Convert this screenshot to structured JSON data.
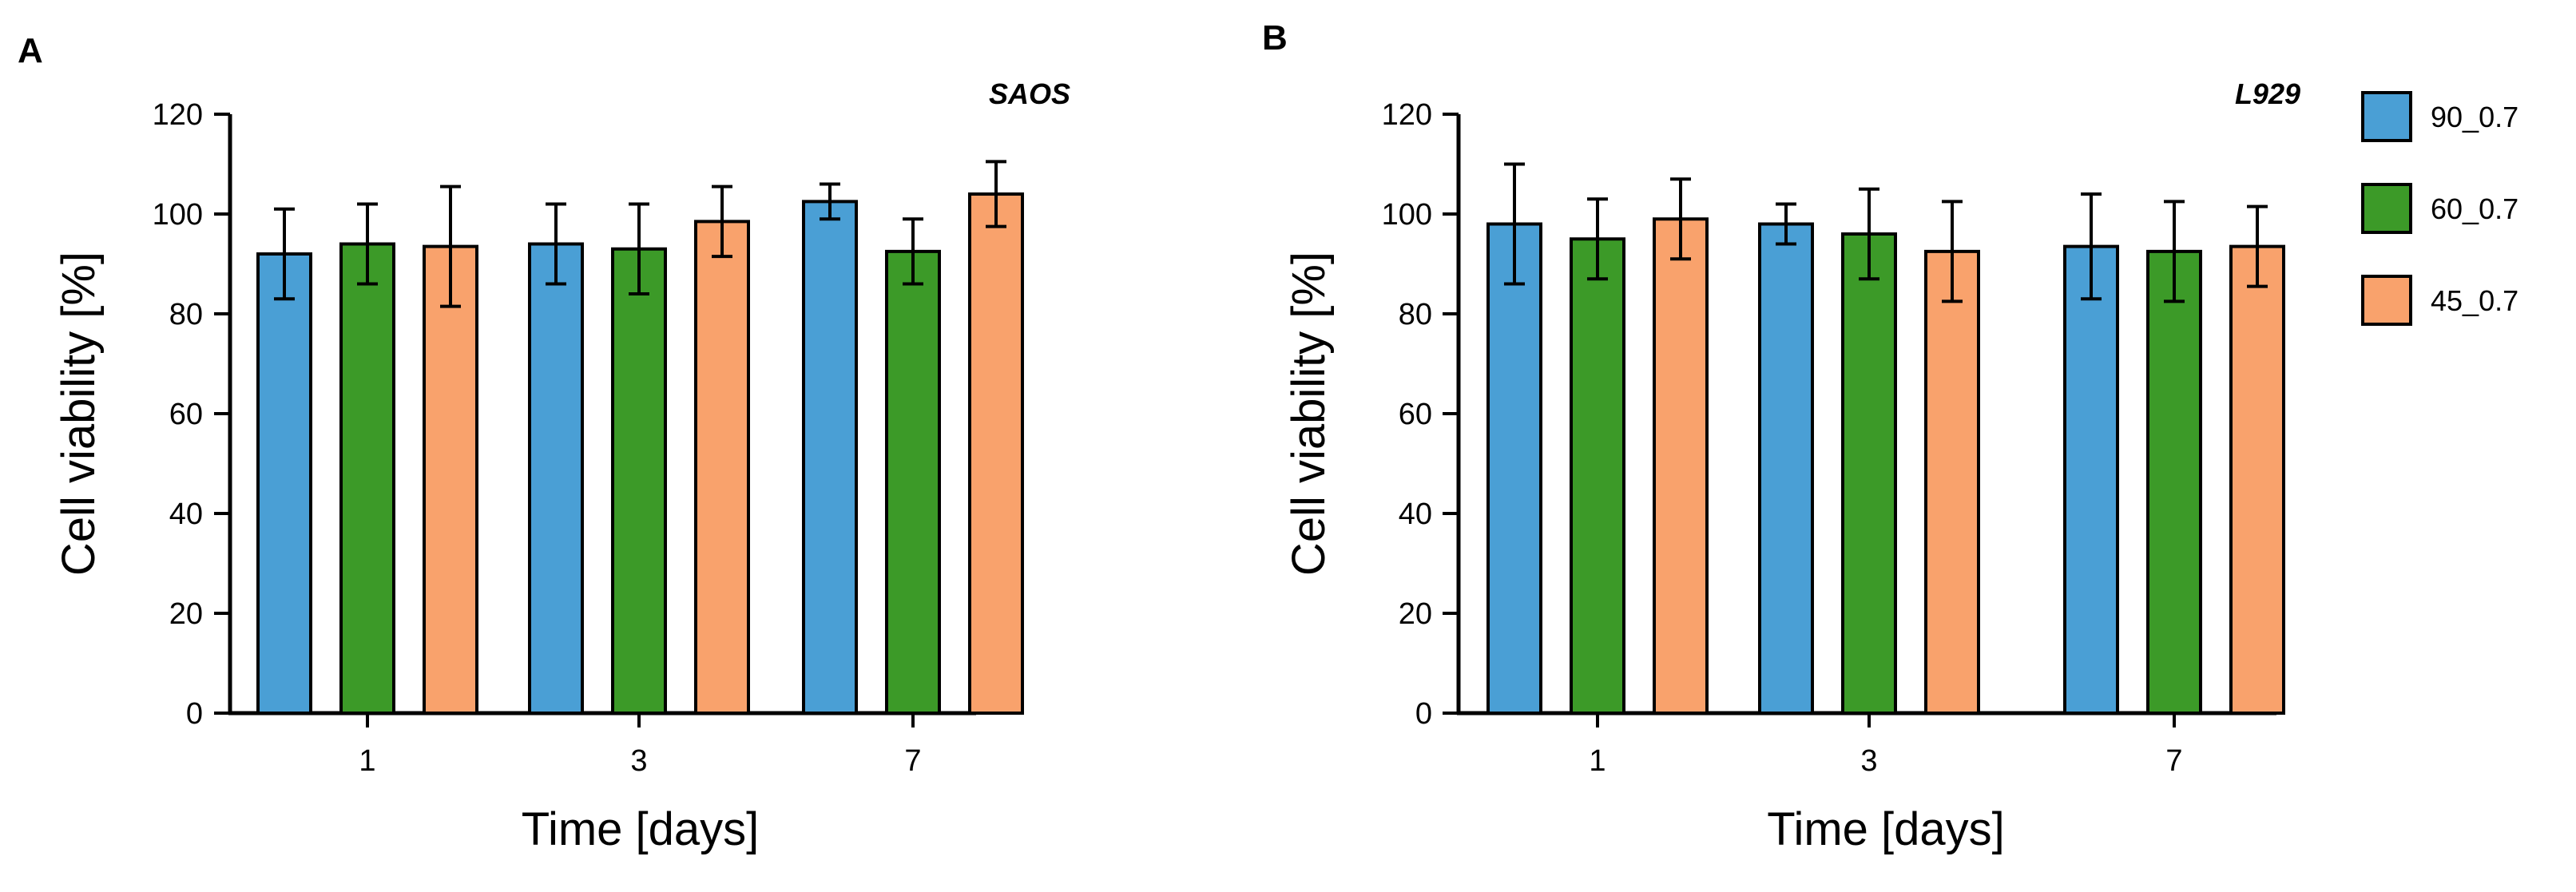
{
  "legend": {
    "entries": [
      {
        "name": "90_0.7",
        "color": "#4a9fd5"
      },
      {
        "name": "60_0.7",
        "color": "#3c9a28"
      },
      {
        "name": "45_0.7",
        "color": "#f9a26c"
      }
    ]
  },
  "chart_data": [
    {
      "type": "bar",
      "panel": "A",
      "title": "SAOS",
      "xlabel": "Time [days]",
      "ylabel": "Cell viability [%]",
      "categories": [
        "1",
        "3",
        "7"
      ],
      "ylim": [
        0,
        120
      ],
      "yticks": [
        0,
        20,
        40,
        60,
        80,
        100,
        120
      ],
      "grid": false,
      "error_bars": true,
      "series": [
        {
          "name": "90_0.7",
          "color": "#4a9fd5",
          "values": [
            92,
            94,
            102.5
          ],
          "errors": [
            9,
            8,
            3.5
          ]
        },
        {
          "name": "60_0.7",
          "color": "#3c9a28",
          "values": [
            94,
            93,
            92.5
          ],
          "errors": [
            8,
            9,
            6.5
          ]
        },
        {
          "name": "45_0.7",
          "color": "#f9a26c",
          "values": [
            93.5,
            98.5,
            104
          ],
          "errors": [
            12,
            7,
            6.5
          ]
        }
      ]
    },
    {
      "type": "bar",
      "panel": "B",
      "title": "L929",
      "xlabel": "Time [days]",
      "ylabel": "Cell viability [%]",
      "categories": [
        "1",
        "3",
        "7"
      ],
      "ylim": [
        0,
        120
      ],
      "yticks": [
        0,
        20,
        40,
        60,
        80,
        100,
        120
      ],
      "grid": false,
      "error_bars": true,
      "legend_position": "right",
      "series": [
        {
          "name": "90_0.7",
          "color": "#4a9fd5",
          "values": [
            98,
            98,
            93.5
          ],
          "errors": [
            12,
            4,
            10.5
          ]
        },
        {
          "name": "60_0.7",
          "color": "#3c9a28",
          "values": [
            95,
            96,
            92.5
          ],
          "errors": [
            8,
            9,
            10
          ]
        },
        {
          "name": "45_0.7",
          "color": "#f9a26c",
          "values": [
            99,
            92.5,
            93.5
          ],
          "errors": [
            8,
            10,
            8
          ]
        }
      ]
    }
  ]
}
